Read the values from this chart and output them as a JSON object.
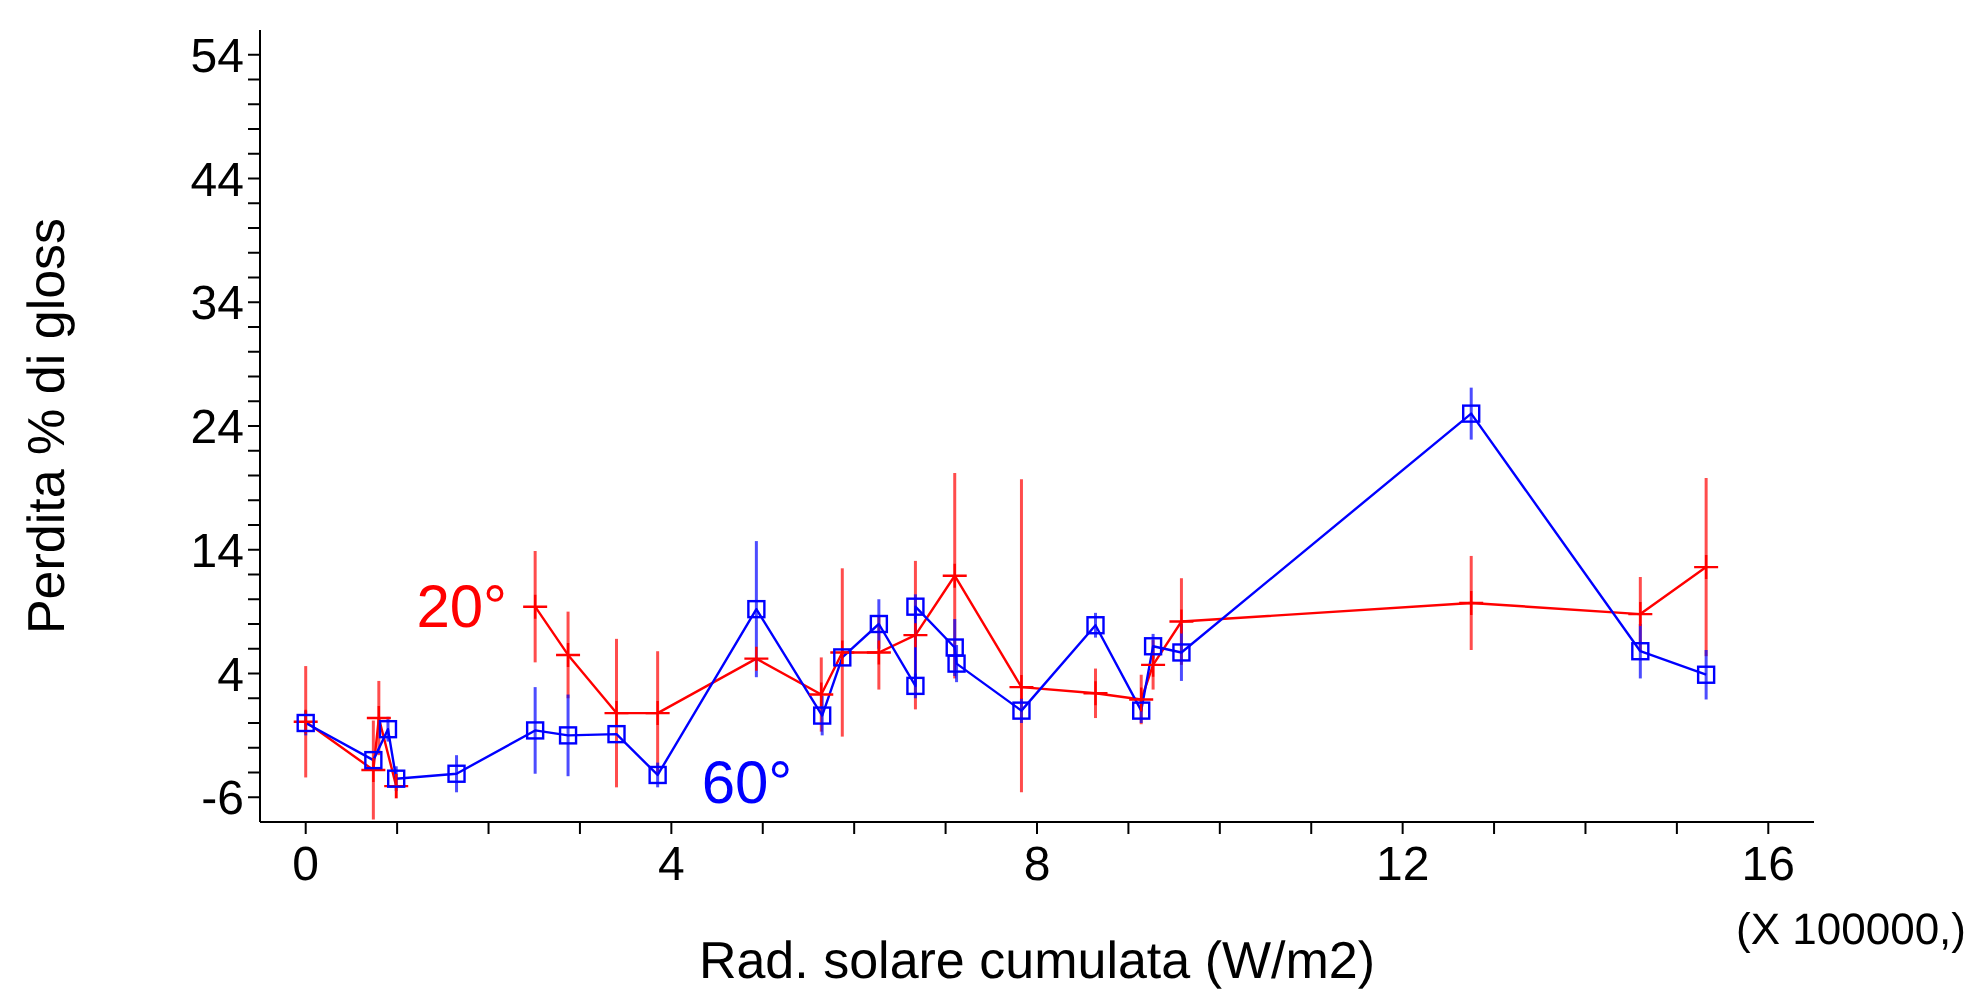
{
  "chart_data": {
    "type": "line",
    "xlabel": "Rad. solare cumulata (W/m2)",
    "ylabel": "Perdita % di gloss",
    "annotations": [
      "(X 100000,)"
    ],
    "xlim": [
      -0.5,
      16.5
    ],
    "ylim": [
      -8,
      56
    ],
    "xticks": [
      0,
      {
        "value": 1,
        "label": null
      },
      {
        "value": 2,
        "label": null
      },
      {
        "value": 3,
        "label": null
      },
      4,
      {
        "value": 5,
        "label": null
      },
      {
        "value": 6,
        "label": null
      },
      {
        "value": 7,
        "label": null
      },
      8,
      {
        "value": 9,
        "label": null
      },
      {
        "value": 10,
        "label": null
      },
      {
        "value": 11,
        "label": null
      },
      12,
      {
        "value": 13,
        "label": null
      },
      {
        "value": 14,
        "label": null
      },
      {
        "value": 15,
        "label": null
      },
      16
    ],
    "yticks": [
      -6,
      {
        "value": -4,
        "label": null
      },
      {
        "value": -2,
        "label": null
      },
      {
        "value": 0,
        "label": null
      },
      {
        "value": 2,
        "label": null
      },
      4,
      {
        "value": 6,
        "label": null
      },
      {
        "value": 8,
        "label": null
      },
      {
        "value": 10,
        "label": null
      },
      {
        "value": 12,
        "label": null
      },
      14,
      {
        "value": 16,
        "label": null
      },
      {
        "value": 18,
        "label": null
      },
      {
        "value": 20,
        "label": null
      },
      {
        "value": 22,
        "label": null
      },
      24,
      {
        "value": 26,
        "label": null
      },
      {
        "value": 28,
        "label": null
      },
      {
        "value": 30,
        "label": null
      },
      {
        "value": 32,
        "label": null
      },
      34,
      {
        "value": 36,
        "label": null
      },
      {
        "value": 38,
        "label": null
      },
      {
        "value": 40,
        "label": null
      },
      {
        "value": 42,
        "label": null
      },
      44,
      {
        "value": 46,
        "label": null
      },
      {
        "value": 48,
        "label": null
      },
      {
        "value": 50,
        "label": null
      },
      {
        "value": 52,
        "label": null
      },
      54
    ],
    "series": [
      {
        "name": "20°",
        "color": "#ff0000",
        "marker": "cross",
        "x": [
          0,
          0.74,
          0.8,
          0.99,
          1.65,
          2.51,
          2.87,
          3.4,
          3.85,
          4.93,
          5.64,
          5.87,
          6.27,
          6.67,
          7.1,
          7.83,
          8.64,
          9.14,
          9.27,
          9.58,
          12.75,
          14.6,
          15.32
        ],
        "values": [
          0.1,
          -3.8,
          0.4,
          -5.1,
          null,
          9.4,
          5.5,
          0.8,
          0.8,
          5.2,
          2.3,
          5.7,
          5.7,
          7.1,
          11.9,
          2.9,
          2.4,
          1.9,
          4.7,
          8.2,
          9.7,
          8.8,
          12.6
        ],
        "errors": [
          4.5,
          4,
          3,
          1,
          null,
          4.5,
          3.5,
          6,
          5,
          null,
          3,
          6.8,
          3,
          6,
          8.3,
          [
            -5.6,
            19.7
          ],
          2,
          2,
          2,
          3.5,
          3.8,
          3,
          7.2
        ]
      },
      {
        "name": "60°",
        "color": "#0000ff",
        "marker": "square",
        "x": [
          0,
          0.74,
          0.9,
          0.99,
          1.65,
          2.51,
          2.87,
          3.4,
          3.85,
          4.93,
          5.65,
          5.87,
          6.27,
          6.67,
          6.67,
          7.1,
          7.12,
          7.83,
          8.64,
          9.14,
          9.27,
          9.58,
          12.75,
          14.6,
          15.32
        ],
        "values": [
          0,
          -3.0,
          -0.5,
          -4.5,
          -4.1,
          -0.6,
          -1.0,
          -0.9,
          -4.2,
          9.2,
          0.6,
          5.3,
          8.0,
          3.0,
          9.4,
          6.1,
          4.8,
          1.0,
          7.9,
          1.0,
          6.2,
          5.7,
          25.0,
          5.8,
          3.9
        ],
        "errors": [
          1,
          null,
          1,
          1,
          1.5,
          3.5,
          3.3,
          null,
          1,
          5.5,
          1.6,
          null,
          2,
          1,
          1,
          2.3,
          1.5,
          1,
          1,
          1,
          1,
          2.3,
          2.1,
          2.2,
          2
        ]
      }
    ]
  }
}
